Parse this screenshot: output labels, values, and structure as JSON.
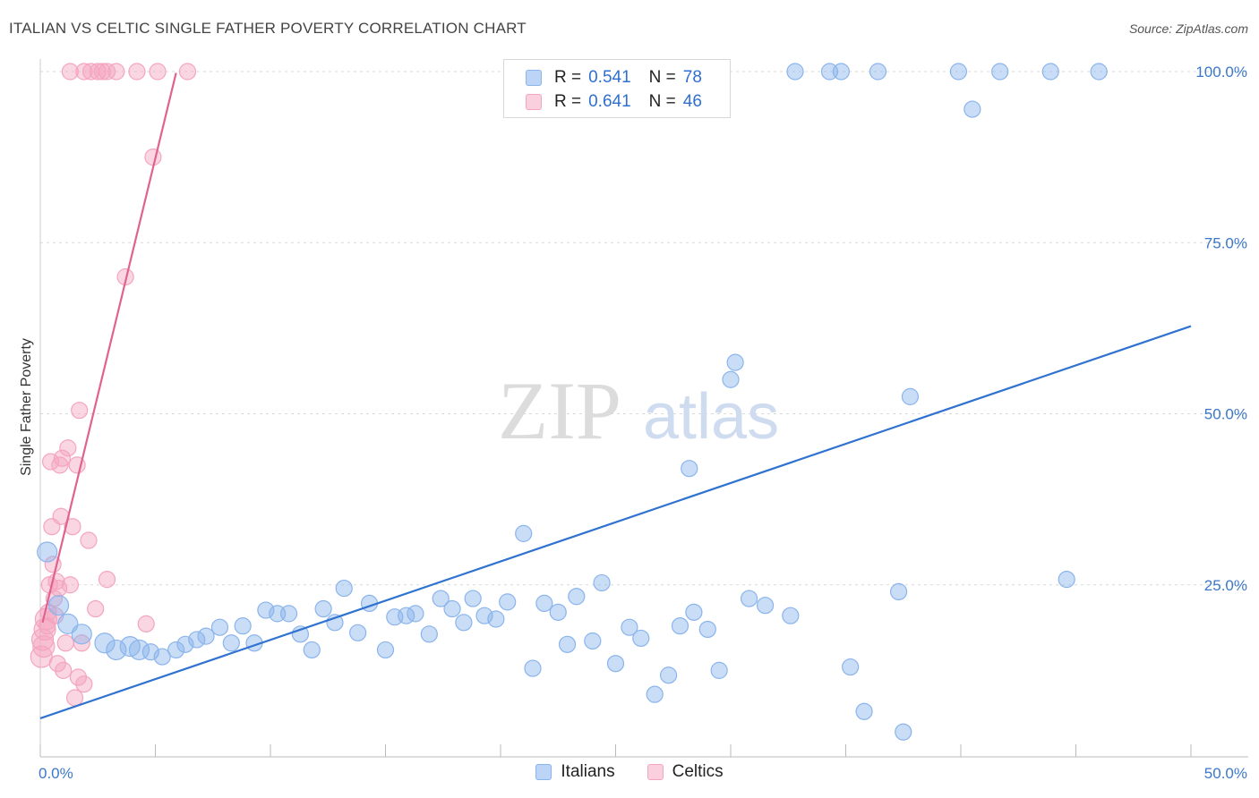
{
  "chart_data": {
    "type": "scatter",
    "title": "ITALIAN VS CELTIC SINGLE FATHER POVERTY CORRELATION CHART",
    "source": "Source: ZipAtlas.com",
    "xlabel": "",
    "ylabel": "Single Father Poverty",
    "xlim": [
      0,
      50
    ],
    "ylim": [
      0,
      100
    ],
    "x_tick_labels": [
      "0.0%",
      "50.0%"
    ],
    "y_ticks": [
      25,
      50,
      75,
      100
    ],
    "y_tick_labels": [
      "25.0%",
      "50.0%",
      "75.0%",
      "100.0%"
    ],
    "watermark": "ZIPatlas",
    "legend_stats": [
      {
        "name": "Italians",
        "r_label": "R =",
        "r": "0.541",
        "n_label": "N =",
        "n": "78"
      },
      {
        "name": "Celtics",
        "r_label": "R =",
        "r": "0.641",
        "n_label": "N =",
        "n": "46"
      }
    ],
    "series": [
      {
        "name": "Italians",
        "color": "#8ab4ec",
        "line_color": "#2f72d0",
        "trend": {
          "x": [
            0,
            50
          ],
          "y": [
            5.5,
            62.8
          ]
        },
        "points": [
          [
            0.3,
            29.8
          ],
          [
            0.8,
            22.0
          ],
          [
            1.2,
            19.3
          ],
          [
            1.8,
            17.8
          ],
          [
            2.8,
            16.5
          ],
          [
            3.3,
            15.5
          ],
          [
            3.9,
            16.0
          ],
          [
            4.3,
            15.5
          ],
          [
            4.8,
            15.2
          ],
          [
            5.3,
            14.5
          ],
          [
            5.9,
            15.5
          ],
          [
            6.3,
            16.3
          ],
          [
            6.8,
            17.0
          ],
          [
            7.2,
            17.5
          ],
          [
            7.8,
            18.8
          ],
          [
            8.3,
            16.5
          ],
          [
            8.8,
            19.0
          ],
          [
            9.3,
            16.5
          ],
          [
            9.8,
            21.3
          ],
          [
            10.3,
            20.8
          ],
          [
            10.8,
            20.8
          ],
          [
            11.3,
            17.8
          ],
          [
            11.8,
            15.5
          ],
          [
            12.3,
            21.5
          ],
          [
            12.8,
            19.5
          ],
          [
            13.2,
            24.5
          ],
          [
            13.8,
            18.0
          ],
          [
            14.3,
            22.3
          ],
          [
            15.0,
            15.5
          ],
          [
            15.4,
            20.3
          ],
          [
            15.9,
            20.5
          ],
          [
            16.3,
            20.8
          ],
          [
            16.9,
            17.8
          ],
          [
            17.4,
            23.0
          ],
          [
            17.9,
            21.5
          ],
          [
            18.4,
            19.5
          ],
          [
            18.8,
            23.0
          ],
          [
            19.3,
            20.5
          ],
          [
            19.8,
            20.0
          ],
          [
            20.3,
            22.5
          ],
          [
            21.0,
            32.5
          ],
          [
            21.4,
            12.8
          ],
          [
            21.9,
            22.3
          ],
          [
            22.5,
            21.0
          ],
          [
            22.9,
            16.3
          ],
          [
            23.3,
            23.3
          ],
          [
            24.0,
            16.8
          ],
          [
            24.4,
            25.3
          ],
          [
            25.0,
            13.5
          ],
          [
            25.6,
            18.8
          ],
          [
            26.1,
            17.2
          ],
          [
            26.7,
            9.0
          ],
          [
            27.3,
            11.8
          ],
          [
            27.8,
            19.0
          ],
          [
            28.2,
            42.0
          ],
          [
            28.4,
            21.0
          ],
          [
            29.0,
            18.5
          ],
          [
            29.5,
            12.5
          ],
          [
            30.0,
            55.0
          ],
          [
            30.2,
            57.5
          ],
          [
            30.8,
            23.0
          ],
          [
            31.5,
            22.0
          ],
          [
            32.6,
            20.5
          ],
          [
            32.8,
            100.0
          ],
          [
            34.3,
            100.0
          ],
          [
            34.8,
            100.0
          ],
          [
            35.2,
            13.0
          ],
          [
            35.8,
            6.5
          ],
          [
            36.4,
            100.0
          ],
          [
            37.3,
            24.0
          ],
          [
            37.8,
            52.5
          ],
          [
            37.5,
            3.5
          ],
          [
            39.9,
            100.0
          ],
          [
            40.5,
            94.5
          ],
          [
            41.7,
            100.0
          ],
          [
            43.9,
            100.0
          ],
          [
            44.6,
            25.8
          ],
          [
            46.0,
            100.0
          ]
        ]
      },
      {
        "name": "Celtics",
        "color": "#f4a5be",
        "line_color": "#e0628f",
        "trend": {
          "x": [
            0.1,
            5.9
          ],
          "y": [
            19.5,
            99.8
          ]
        },
        "points": [
          [
            0.05,
            14.5
          ],
          [
            0.1,
            17.0
          ],
          [
            0.15,
            16.0
          ],
          [
            0.2,
            18.5
          ],
          [
            0.25,
            20.0
          ],
          [
            0.3,
            19.0
          ],
          [
            0.35,
            21.0
          ],
          [
            0.4,
            25.0
          ],
          [
            0.45,
            43.0
          ],
          [
            0.5,
            33.5
          ],
          [
            0.55,
            28.0
          ],
          [
            0.6,
            23.0
          ],
          [
            0.65,
            20.5
          ],
          [
            0.7,
            25.5
          ],
          [
            0.75,
            13.5
          ],
          [
            0.8,
            24.5
          ],
          [
            0.85,
            42.5
          ],
          [
            0.9,
            35.0
          ],
          [
            0.95,
            43.5
          ],
          [
            1.0,
            12.5
          ],
          [
            1.1,
            16.5
          ],
          [
            1.2,
            45.0
          ],
          [
            1.3,
            25.0
          ],
          [
            1.4,
            33.5
          ],
          [
            1.5,
            8.5
          ],
          [
            1.6,
            42.5
          ],
          [
            1.65,
            11.5
          ],
          [
            1.7,
            50.5
          ],
          [
            1.8,
            16.5
          ],
          [
            1.9,
            10.5
          ],
          [
            2.1,
            31.5
          ],
          [
            2.4,
            21.5
          ],
          [
            2.9,
            25.8
          ],
          [
            4.6,
            19.3
          ],
          [
            1.9,
            100.0
          ],
          [
            2.2,
            100.0
          ],
          [
            2.5,
            100.0
          ],
          [
            2.7,
            100.0
          ],
          [
            2.9,
            100.0
          ],
          [
            3.3,
            100.0
          ],
          [
            4.2,
            100.0
          ],
          [
            5.1,
            100.0
          ],
          [
            6.4,
            100.0
          ],
          [
            3.7,
            70.0
          ],
          [
            4.9,
            87.5
          ],
          [
            1.3,
            100.0
          ]
        ]
      }
    ]
  }
}
